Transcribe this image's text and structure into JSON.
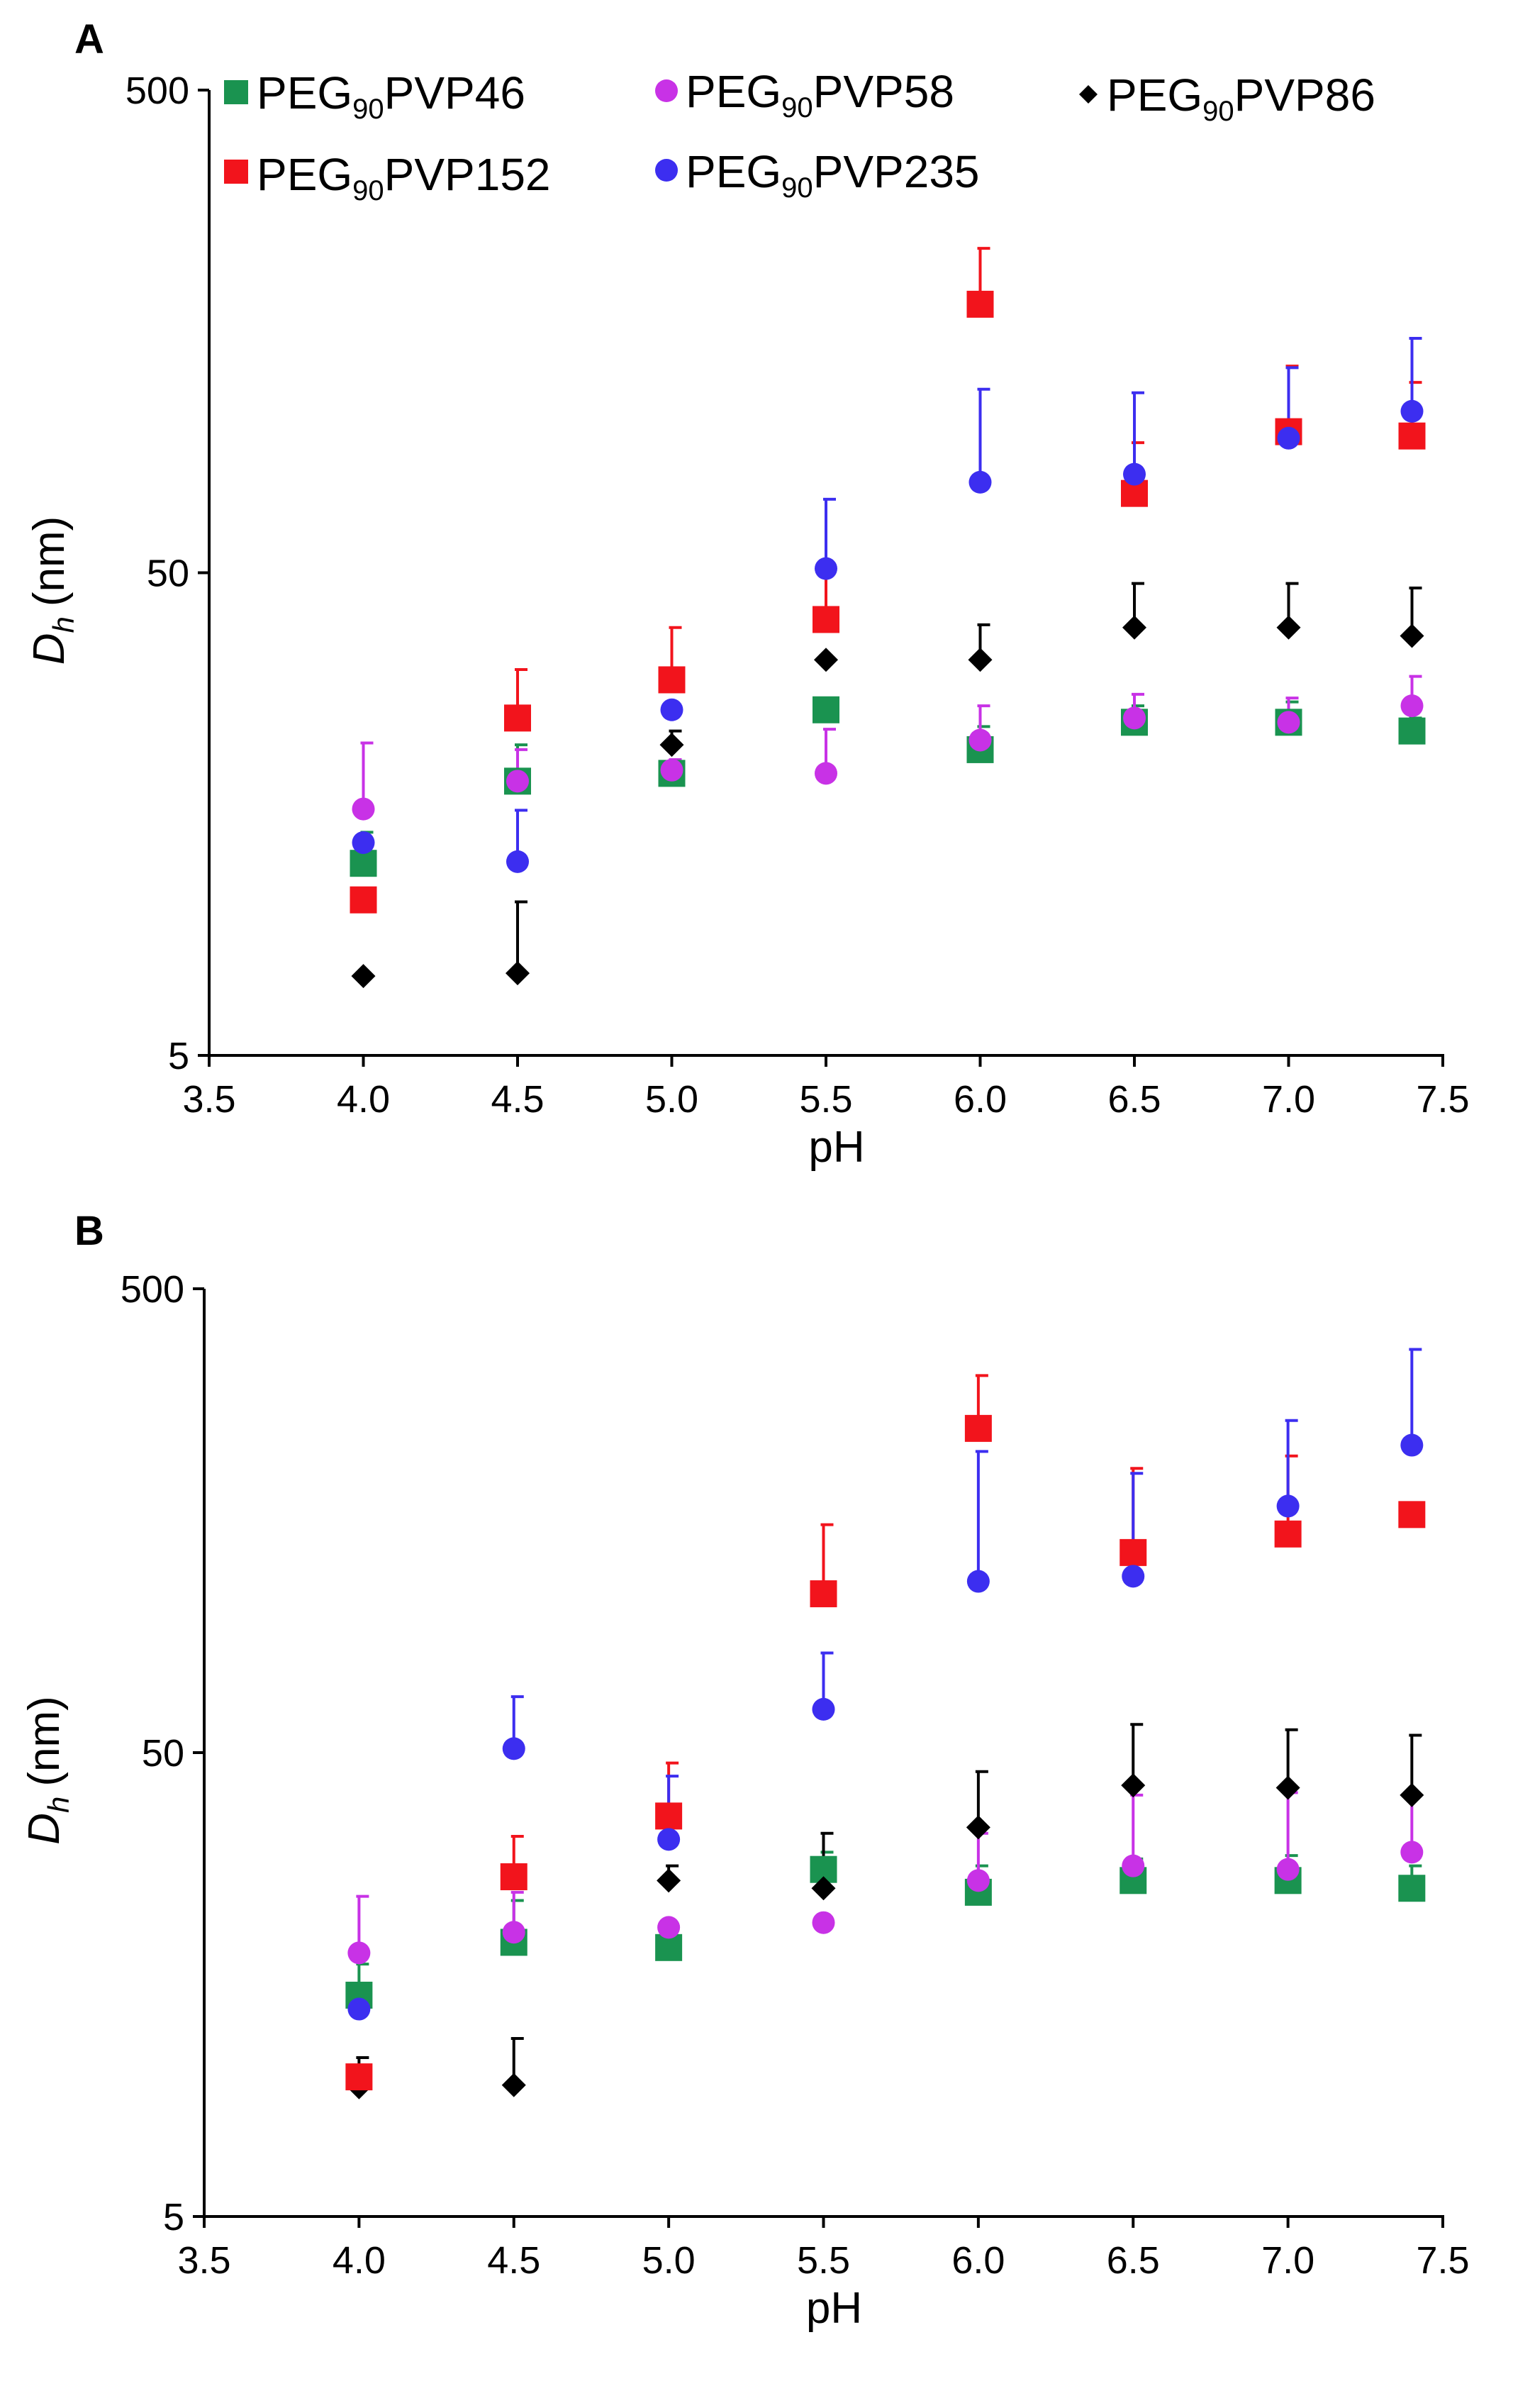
{
  "figure": {
    "colors": {
      "PVP46": "#1a9350",
      "PVP58": "#c832e6",
      "PVP86": "#000000",
      "PVP152": "#f2141c",
      "PVP235": "#3c2ef0"
    },
    "legend": [
      {
        "key": "PVP46",
        "prefix": "PEG",
        "sub": "90",
        "suffix": "PVP46",
        "marker": "square"
      },
      {
        "key": "PVP58",
        "prefix": "PEG",
        "sub": "90",
        "suffix": "PVP58",
        "marker": "circle"
      },
      {
        "key": "PVP86",
        "prefix": "PEG",
        "sub": "90",
        "suffix": "PVP86",
        "marker": "diamond"
      },
      {
        "key": "PVP152",
        "prefix": "PEG",
        "sub": "90",
        "suffix": "PVP152",
        "marker": "square"
      },
      {
        "key": "PVP235",
        "prefix": "PEG",
        "sub": "90",
        "suffix": "PVP235",
        "marker": "circle"
      }
    ]
  },
  "chart_data": [
    {
      "panel": "A",
      "type": "scatter",
      "xlabel": "pH",
      "ylabel_main": "D",
      "ylabel_sub": "h",
      "ylabel_unit": "(nm)",
      "xlim": [
        3.5,
        7.5
      ],
      "ylim": [
        5,
        500
      ],
      "yscale": "log",
      "xticks": [
        "3.5",
        "4.0",
        "4.5",
        "5.0",
        "5.5",
        "6.0",
        "6.5",
        "7.0",
        "7.5"
      ],
      "yticks": [
        "5",
        "50",
        "500"
      ],
      "x": [
        4.0,
        4.5,
        5.0,
        5.5,
        6.0,
        6.5,
        7.0,
        7.4
      ],
      "series": [
        {
          "key": "PVP46",
          "marker": "square",
          "values": [
            12.5,
            18.5,
            19.2,
            26.0,
            21.5,
            24.5,
            24.5,
            23.5
          ],
          "errors": [
            2.0,
            3.5,
            1.0,
            1.5,
            2.5,
            2.0,
            2.5,
            1.5
          ]
        },
        {
          "key": "PVP58",
          "marker": "circle",
          "values": [
            16.2,
            18.5,
            19.5,
            19.2,
            22.5,
            25.0,
            24.5,
            26.5
          ],
          "errors": [
            6.0,
            3.0,
            1.0,
            4.5,
            4.0,
            3.0,
            3.0,
            4.0
          ]
        },
        {
          "key": "PVP86",
          "marker": "diamond",
          "values": [
            7.3,
            7.4,
            22.0,
            33.0,
            33.0,
            38.5,
            38.5,
            37.0
          ],
          "errors": [
            0.0,
            3.0,
            1.5,
            0.0,
            6.0,
            9.0,
            9.0,
            9.5
          ]
        },
        {
          "key": "PVP152",
          "marker": "square",
          "values": [
            10.5,
            25.0,
            30.0,
            40.0,
            180.0,
            73.0,
            98.0,
            96.0
          ],
          "errors": [
            0.0,
            6.5,
            8.5,
            12.0,
            55.0,
            20.0,
            36.0,
            28.0
          ]
        },
        {
          "key": "PVP235",
          "marker": "circle",
          "values": [
            13.8,
            12.6,
            26.0,
            51.0,
            77.0,
            80.0,
            95.0,
            108.0
          ],
          "errors": [
            0.0,
            3.5,
            0.0,
            20.0,
            43.0,
            38.0,
            38.0,
            45.0
          ]
        }
      ]
    },
    {
      "panel": "B",
      "type": "scatter",
      "xlabel": "pH",
      "ylabel_main": "D",
      "ylabel_sub": "h",
      "ylabel_unit": "(nm)",
      "xlim": [
        3.5,
        7.5
      ],
      "ylim": [
        5,
        500
      ],
      "yscale": "log",
      "xticks": [
        "3.5",
        "4.0",
        "4.5",
        "5.0",
        "5.5",
        "6.0",
        "6.5",
        "7.0",
        "7.5"
      ],
      "yticks": [
        "5",
        "50",
        "500"
      ],
      "x": [
        4.0,
        4.5,
        5.0,
        5.5,
        6.0,
        6.5,
        7.0,
        7.4
      ],
      "series": [
        {
          "key": "PVP46",
          "marker": "square",
          "values": [
            15.0,
            19.5,
            19.0,
            28.0,
            25.0,
            26.5,
            26.5,
            25.5
          ],
          "errors": [
            2.5,
            4.5,
            0.0,
            2.5,
            3.5,
            3.0,
            3.5,
            3.0
          ]
        },
        {
          "key": "PVP58",
          "marker": "circle",
          "values": [
            18.5,
            20.5,
            21.0,
            21.5,
            26.5,
            28.5,
            28.0,
            30.5
          ],
          "errors": [
            6.0,
            4.5,
            0.0,
            0.0,
            7.0,
            12.0,
            13.0,
            10.0
          ]
        },
        {
          "key": "PVP86",
          "marker": "diamond",
          "values": [
            9.5,
            9.6,
            26.5,
            25.5,
            34.5,
            42.5,
            42.0,
            40.5
          ],
          "errors": [
            1.5,
            2.5,
            2.0,
            8.0,
            11.0,
            15.0,
            14.0,
            14.0
          ]
        },
        {
          "key": "PVP152",
          "marker": "square",
          "values": [
            10.0,
            27.0,
            36.5,
            110.0,
            250.0,
            135.0,
            148.0,
            163.0
          ],
          "errors": [
            0.0,
            6.0,
            11.0,
            45.0,
            75.0,
            70.0,
            70.0,
            0.0
          ]
        },
        {
          "key": "PVP235",
          "marker": "circle",
          "values": [
            14.0,
            51.0,
            32.5,
            62.0,
            117.0,
            120.0,
            170.0,
            230.0
          ],
          "errors": [
            0.0,
            15.0,
            12.0,
            20.0,
            106.0,
            80.0,
            90.0,
            140.0
          ]
        }
      ]
    }
  ]
}
